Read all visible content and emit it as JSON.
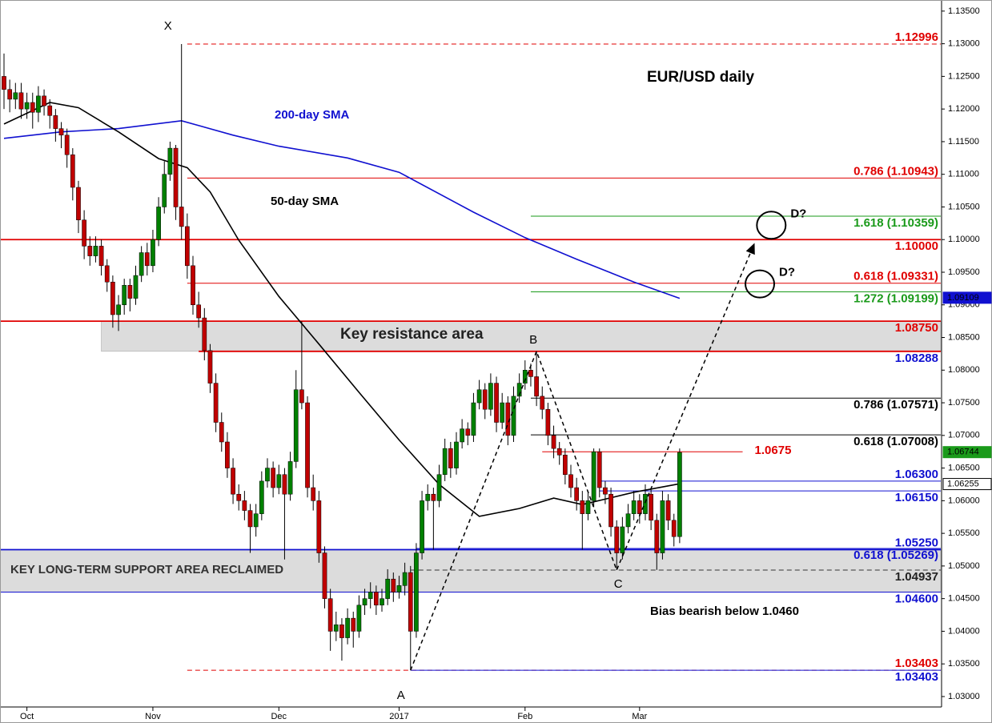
{
  "chart_data": {
    "type": "candlestick",
    "title": "EUR/USD daily",
    "up_color": "#008000",
    "down_color": "#c00000",
    "xlim": [
      -0.7,
      163.6
    ],
    "ylim": [
      1.0284,
      1.1367
    ],
    "xticks": [
      {
        "value": 4,
        "label": "Oct"
      },
      {
        "value": 26,
        "label": "Nov"
      },
      {
        "value": 48,
        "label": "Dec"
      },
      {
        "value": 69,
        "label": "2017"
      },
      {
        "value": 91,
        "label": "Feb"
      },
      {
        "value": 111,
        "label": "Mar"
      }
    ],
    "yticks": [
      {
        "value": 1.03,
        "label": "1.03000"
      },
      {
        "value": 1.035,
        "label": "1.03500"
      },
      {
        "value": 1.04,
        "label": "1.04000"
      },
      {
        "value": 1.045,
        "label": "1.04500"
      },
      {
        "value": 1.05,
        "label": "1.05000"
      },
      {
        "value": 1.055,
        "label": "1.05500"
      },
      {
        "value": 1.06,
        "label": "1.06000"
      },
      {
        "value": 1.065,
        "label": "1.06500"
      },
      {
        "value": 1.07,
        "label": "1.07000"
      },
      {
        "value": 1.075,
        "label": "1.07500"
      },
      {
        "value": 1.08,
        "label": "1.08000"
      },
      {
        "value": 1.085,
        "label": "1.08500"
      },
      {
        "value": 1.09,
        "label": "1.09000"
      },
      {
        "value": 1.095,
        "label": "1.09500"
      },
      {
        "value": 1.1,
        "label": "1.10000"
      },
      {
        "value": 1.105,
        "label": "1.10500"
      },
      {
        "value": 1.11,
        "label": "1.11000"
      },
      {
        "value": 1.115,
        "label": "1.11500"
      },
      {
        "value": 1.12,
        "label": "1.12000"
      },
      {
        "value": 1.125,
        "label": "1.12500"
      },
      {
        "value": 1.13,
        "label": "1.13000"
      },
      {
        "value": 1.135,
        "label": "1.13500"
      }
    ],
    "candles": [
      [
        1.125,
        1.1285,
        1.12,
        1.123
      ],
      [
        1.123,
        1.1245,
        1.1195,
        1.1215
      ],
      [
        1.1215,
        1.124,
        1.12,
        1.1225
      ],
      [
        1.1225,
        1.124,
        1.1185,
        1.12
      ],
      [
        1.12,
        1.1225,
        1.1185,
        1.121
      ],
      [
        1.121,
        1.1225,
        1.117,
        1.1195
      ],
      [
        1.1195,
        1.1235,
        1.118,
        1.122
      ],
      [
        1.122,
        1.123,
        1.119,
        1.1205
      ],
      [
        1.1205,
        1.1215,
        1.117,
        1.119
      ],
      [
        1.119,
        1.12,
        1.115,
        1.117
      ],
      [
        1.117,
        1.118,
        1.114,
        1.116
      ],
      [
        1.116,
        1.117,
        1.111,
        1.113
      ],
      [
        1.113,
        1.114,
        1.106,
        1.108
      ],
      [
        1.108,
        1.109,
        1.101,
        1.103
      ],
      [
        1.103,
        1.1045,
        1.097,
        1.099
      ],
      [
        1.099,
        1.1005,
        1.096,
        1.0975
      ],
      [
        1.0975,
        1.1005,
        1.0965,
        1.099
      ],
      [
        1.099,
        1.1,
        1.0945,
        1.096
      ],
      [
        1.096,
        1.097,
        1.092,
        1.0935
      ],
      [
        1.0935,
        1.0945,
        1.0865,
        1.0885
      ],
      [
        1.0885,
        1.0915,
        1.086,
        1.09
      ],
      [
        1.09,
        1.094,
        1.0885,
        1.093
      ],
      [
        1.093,
        1.094,
        1.089,
        1.091
      ],
      [
        1.091,
        1.096,
        1.09,
        1.0945
      ],
      [
        1.0945,
        1.099,
        1.0935,
        1.098
      ],
      [
        1.098,
        1.0995,
        1.0945,
        1.096
      ],
      [
        1.096,
        1.1015,
        1.095,
        1.1
      ],
      [
        1.1,
        1.1065,
        1.099,
        1.105
      ],
      [
        1.105,
        1.112,
        1.104,
        1.11
      ],
      [
        1.11,
        1.115,
        1.109,
        1.114
      ],
      [
        1.114,
        1.1145,
        1.103,
        1.105
      ],
      [
        1.105,
        1.12996,
        1.1,
        1.102
      ],
      [
        1.102,
        1.104,
        1.094,
        1.096
      ],
      [
        1.096,
        1.0975,
        1.0885,
        1.09
      ],
      [
        1.09,
        1.092,
        1.0865,
        1.088
      ],
      [
        1.088,
        1.0895,
        1.0815,
        1.083
      ],
      [
        1.083,
        1.084,
        1.0765,
        1.078
      ],
      [
        1.078,
        1.0795,
        1.0705,
        1.072
      ],
      [
        1.072,
        1.0735,
        1.0675,
        1.069
      ],
      [
        1.069,
        1.0705,
        1.0635,
        1.065
      ],
      [
        1.065,
        1.0665,
        1.0595,
        1.061
      ],
      [
        1.061,
        1.0625,
        1.0585,
        1.06
      ],
      [
        1.06,
        1.0615,
        1.057,
        1.0585
      ],
      [
        1.0585,
        1.0595,
        1.052,
        1.056
      ],
      [
        1.056,
        1.0595,
        1.0545,
        1.058
      ],
      [
        1.058,
        1.0645,
        1.057,
        1.063
      ],
      [
        1.063,
        1.0665,
        1.062,
        1.065
      ],
      [
        1.065,
        1.066,
        1.0605,
        1.062
      ],
      [
        1.062,
        1.0655,
        1.061,
        1.064
      ],
      [
        1.064,
        1.065,
        1.051,
        1.061
      ],
      [
        1.061,
        1.0675,
        1.06,
        1.066
      ],
      [
        1.066,
        1.08,
        1.065,
        1.077
      ],
      [
        1.077,
        1.0875,
        1.074,
        1.075
      ],
      [
        1.075,
        1.076,
        1.0605,
        1.062
      ],
      [
        1.062,
        1.064,
        1.0585,
        1.06
      ],
      [
        1.06,
        1.0615,
        1.0505,
        1.052
      ],
      [
        1.052,
        1.053,
        1.0435,
        1.045
      ],
      [
        1.045,
        1.0465,
        1.037,
        1.04
      ],
      [
        1.04,
        1.043,
        1.0385,
        1.041
      ],
      [
        1.041,
        1.042,
        1.0355,
        1.039
      ],
      [
        1.039,
        1.0435,
        1.038,
        1.042
      ],
      [
        1.042,
        1.043,
        1.0375,
        1.04
      ],
      [
        1.04,
        1.0455,
        1.039,
        1.044
      ],
      [
        1.044,
        1.0465,
        1.0425,
        1.045
      ],
      [
        1.045,
        1.0475,
        1.0435,
        1.046
      ],
      [
        1.046,
        1.047,
        1.0425,
        1.044
      ],
      [
        1.044,
        1.0465,
        1.043,
        1.045
      ],
      [
        1.045,
        1.0495,
        1.044,
        1.048
      ],
      [
        1.048,
        1.049,
        1.0445,
        1.046
      ],
      [
        1.046,
        1.0485,
        1.045,
        1.047
      ],
      [
        1.047,
        1.0505,
        1.0455,
        1.049
      ],
      [
        1.049,
        1.05,
        1.03403,
        1.04
      ],
      [
        1.04,
        1.0535,
        1.039,
        1.052
      ],
      [
        1.052,
        1.0615,
        1.051,
        1.06
      ],
      [
        1.06,
        1.0625,
        1.0585,
        1.061
      ],
      [
        1.061,
        1.062,
        1.0525,
        1.06
      ],
      [
        1.06,
        1.0655,
        1.059,
        1.064
      ],
      [
        1.064,
        1.0695,
        1.063,
        1.068
      ],
      [
        1.068,
        1.069,
        1.0635,
        1.065
      ],
      [
        1.065,
        1.0705,
        1.064,
        1.069
      ],
      [
        1.069,
        1.0725,
        1.068,
        1.071
      ],
      [
        1.071,
        1.072,
        1.0685,
        1.07
      ],
      [
        1.07,
        1.0765,
        1.069,
        1.075
      ],
      [
        1.075,
        1.0785,
        1.074,
        1.077
      ],
      [
        1.077,
        1.078,
        1.0725,
        1.074
      ],
      [
        1.074,
        1.0795,
        1.073,
        1.078
      ],
      [
        1.078,
        1.079,
        1.0705,
        1.072
      ],
      [
        1.072,
        1.0765,
        1.071,
        1.075
      ],
      [
        1.075,
        1.076,
        1.0685,
        1.07
      ],
      [
        1.07,
        1.0775,
        1.069,
        1.076
      ],
      [
        1.076,
        1.0795,
        1.075,
        1.078
      ],
      [
        1.078,
        1.0815,
        1.077,
        1.08
      ],
      [
        1.08,
        1.081,
        1.0775,
        1.079
      ],
      [
        1.079,
        1.08288,
        1.0745,
        1.076
      ],
      [
        1.076,
        1.0775,
        1.0725,
        1.074
      ],
      [
        1.074,
        1.075,
        1.0685,
        1.07
      ],
      [
        1.07,
        1.0715,
        1.0665,
        1.068
      ],
      [
        1.068,
        1.069,
        1.0655,
        1.067
      ],
      [
        1.067,
        1.068,
        1.0625,
        1.064
      ],
      [
        1.064,
        1.0655,
        1.0605,
        1.062
      ],
      [
        1.062,
        1.0635,
        1.0585,
        1.06
      ],
      [
        1.06,
        1.0615,
        1.0525,
        1.058
      ],
      [
        1.058,
        1.0615,
        1.057,
        1.06
      ],
      [
        1.06,
        1.068,
        1.059,
        1.0675
      ],
      [
        1.0675,
        1.068,
        1.0605,
        1.062
      ],
      [
        1.062,
        1.063,
        1.0595,
        1.061
      ],
      [
        1.061,
        1.062,
        1.0545,
        1.056
      ],
      [
        1.056,
        1.057,
        1.04937,
        1.052
      ],
      [
        1.052,
        1.0575,
        1.051,
        1.056
      ],
      [
        1.056,
        1.0595,
        1.055,
        1.058
      ],
      [
        1.058,
        1.0615,
        1.057,
        1.06
      ],
      [
        1.06,
        1.061,
        1.0565,
        1.058
      ],
      [
        1.058,
        1.0625,
        1.057,
        1.061
      ],
      [
        1.061,
        1.062,
        1.0555,
        1.057
      ],
      [
        1.057,
        1.058,
        1.0494,
        1.052
      ],
      [
        1.052,
        1.0615,
        1.051,
        1.06
      ],
      [
        1.06,
        1.061,
        1.0555,
        1.057
      ],
      [
        1.057,
        1.058,
        1.053,
        1.0545
      ],
      [
        1.0545,
        1.068,
        1.0535,
        1.0674
      ]
    ],
    "lines": [
      {
        "name": "200-day SMA",
        "color": "#1010d0",
        "x": [
          0,
          10,
          20,
          31,
          40,
          48,
          60,
          69,
          82,
          91,
          100,
          110,
          118
        ],
        "values": [
          1.1155,
          1.1165,
          1.117,
          1.1182,
          1.116,
          1.1143,
          1.1125,
          1.1103,
          1.1042,
          1.1003,
          1.097,
          1.0935,
          1.091
        ]
      },
      {
        "name": "50-day SMA",
        "color": "#000000",
        "x": [
          0,
          8,
          13,
          20,
          27,
          32,
          36,
          41,
          48,
          55,
          62,
          69,
          76,
          83,
          90,
          96,
          101,
          110,
          118
        ],
        "values": [
          1.1177,
          1.121,
          1.1202,
          1.1165,
          1.1124,
          1.111,
          1.1073,
          1.0999,
          1.0913,
          1.084,
          1.0766,
          1.0693,
          1.0625,
          1.0576,
          1.0588,
          1.0604,
          1.0594,
          1.0613,
          1.0626
        ]
      }
    ],
    "zones": [
      {
        "label": "Key resistance area",
        "top": 1.0875,
        "bottom": 1.08288,
        "from": 17
      },
      {
        "label": "KEY LONG-TERM SUPPORT AREA RECLAIMED",
        "top": 1.0525,
        "bottom": 1.046,
        "from": -0.7
      }
    ],
    "levels": [
      {
        "value": 1.12996,
        "label": "1.12996",
        "color": "#e00000",
        "label_color": "#e00000",
        "from": 32,
        "dashed": true
      },
      {
        "value": 1.10943,
        "label": "0.786 (1.10943)",
        "color": "#e00000",
        "label_color": "#e00000",
        "from": 32
      },
      {
        "value": 1.10359,
        "label": "1.618 (1.10359)",
        "color": "#1a9a1a",
        "label_color": "#1a9a1a",
        "from": 92
      },
      {
        "value": 1.1,
        "label": "1.10000",
        "color": "#e00000",
        "label_color": "#e00000",
        "from": -0.7,
        "thick": true
      },
      {
        "value": 1.09331,
        "label": "0.618 (1.09331)",
        "color": "#e00000",
        "label_color": "#e00000",
        "from": 32
      },
      {
        "value": 1.09199,
        "label": "1.272 (1.09199)",
        "color": "#1a9a1a",
        "label_color": "#1a9a1a",
        "from": 92
      },
      {
        "value": 1.0875,
        "label": "1.08750",
        "color": "#e00000",
        "label_color": "#e00000",
        "from": -0.7,
        "thick": true
      },
      {
        "value": 1.08288,
        "label": "1.08288",
        "color": "#e00000",
        "label_color": "#1010d0",
        "from": 34,
        "thick": true
      },
      {
        "value": 1.07571,
        "label": "0.786 (1.07571)",
        "color": "#000000",
        "label_color": "#000000",
        "from": 92
      },
      {
        "value": 1.07008,
        "label": "0.618 (1.07008)",
        "color": "#000000",
        "label_color": "#000000",
        "from": 92
      },
      {
        "value": 1.0675,
        "label": "1.0675",
        "color": "#e00000",
        "label_color": "#e00000",
        "from": 94,
        "to": 129
      },
      {
        "value": 1.063,
        "label": "1.06300",
        "color": "#1010d0",
        "label_color": "#1010d0",
        "from": 104
      },
      {
        "value": 1.0615,
        "label": "1.06150",
        "color": "#1010d0",
        "label_color": "#1010d0",
        "from": 104
      },
      {
        "value": 1.0525,
        "label": "1.05250",
        "color": "#1010d0",
        "label_color": "#1010d0",
        "from": -0.7,
        "thick": true
      },
      {
        "value": 1.05269,
        "label": "0.618 (1.05269)",
        "color": "#1010d0",
        "label_color": "#1010d0",
        "from": 72
      },
      {
        "value": 1.04937,
        "label": "1.04937",
        "color": "#333333",
        "label_color": "#222222",
        "from": 71,
        "dashed": true
      },
      {
        "value": 1.046,
        "label": "1.04600",
        "color": "#1010d0",
        "label_color": "#1010d0",
        "from": -0.7
      },
      {
        "value": 1.03403,
        "label": "1.03403",
        "color": "#e00000",
        "label_color": "#e00000",
        "from": 32,
        "dashed": true
      },
      {
        "value": 1.03403,
        "label": "1.03403",
        "color": "#1010d0",
        "label_color": "#1010d0",
        "from": 71
      }
    ],
    "points": [
      {
        "label": "X",
        "x": 31,
        "y": 1.12996
      },
      {
        "label": "A",
        "x": 71,
        "y": 1.03403
      },
      {
        "label": "B",
        "x": 93,
        "y": 1.08288
      },
      {
        "label": "C",
        "x": 107,
        "y": 1.04937
      }
    ],
    "pattern": {
      "x": [
        71,
        93,
        107,
        131
      ],
      "values": [
        1.03403,
        1.08288,
        1.04937,
        1.0993
      ]
    },
    "circles": [
      {
        "label": "D?",
        "x": 134,
        "y": 1.1022
      },
      {
        "label": "D?",
        "x": 132,
        "y": 1.0932
      }
    ],
    "badges": [
      {
        "value": 1.09109,
        "label": "1.09109",
        "color": "#1010d0"
      },
      {
        "value": 1.06744,
        "label": "1.06744",
        "color": "#1a9a1a"
      },
      {
        "value": 1.06255,
        "label": "1.06255",
        "color": "#ffffff"
      }
    ],
    "annotation": "Bias bearish below 1.0460"
  }
}
